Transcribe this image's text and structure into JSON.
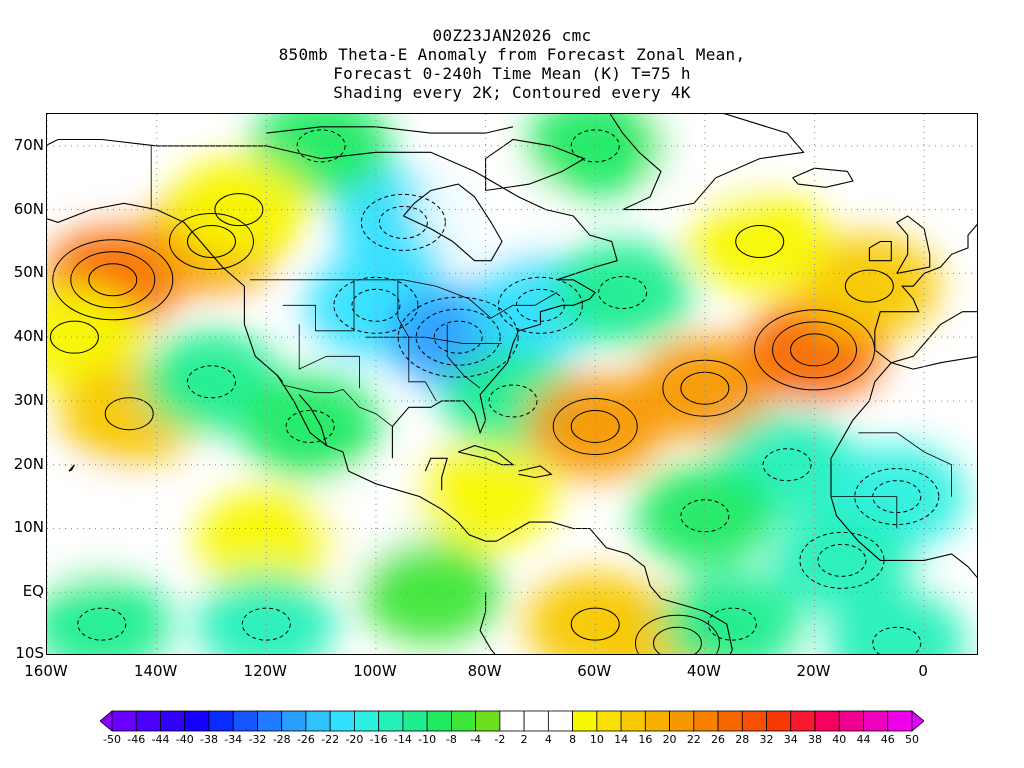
{
  "title": {
    "lines": [
      "00Z23JAN2026 cmc",
      "850mb Theta-E Anomaly from Forecast Zonal Mean,",
      "Forecast 0-240h Time Mean (K) T=75 h",
      "Shading every 2K; Contoured every 4K"
    ]
  },
  "axes": {
    "lat_labels": [
      "70N",
      "60N",
      "50N",
      "40N",
      "30N",
      "20N",
      "10N",
      "EQ",
      "10S"
    ],
    "lat_values": [
      70,
      60,
      50,
      40,
      30,
      20,
      10,
      0,
      -10
    ],
    "lon_labels": [
      "160W",
      "140W",
      "120W",
      "100W",
      "80W",
      "60W",
      "40W",
      "20W",
      "0"
    ],
    "lon_values": [
      -160,
      -140,
      -120,
      -100,
      -80,
      -60,
      -40,
      -20,
      0
    ],
    "lon_range": [
      -160,
      10
    ],
    "lat_range": [
      -10,
      75
    ],
    "grid": "dotted"
  },
  "colorbar": {
    "labels": [
      "-50",
      "-46",
      "-44",
      "-40",
      "-38",
      "-34",
      "-32",
      "-28",
      "-26",
      "-22",
      "-20",
      "-16",
      "-14",
      "-10",
      "-8",
      "-4",
      "-2",
      "2",
      "4",
      "8",
      "10",
      "14",
      "16",
      "20",
      "22",
      "26",
      "28",
      "32",
      "34",
      "38",
      "40",
      "44",
      "46",
      "50"
    ],
    "colors": [
      "#8800ff",
      "#6a00ff",
      "#4b00ff",
      "#2f00ff",
      "#1500ff",
      "#0a2bff",
      "#1656ff",
      "#1f7bff",
      "#2a9eff",
      "#2ec2ff",
      "#30e0ff",
      "#2cf0e0",
      "#24f0b8",
      "#1eee90",
      "#20ea62",
      "#3ee638",
      "#6ce020",
      "#ffffff",
      "#ffffff",
      "#ffffff",
      "#f8f800",
      "#f8e000",
      "#f8c800",
      "#f8b000",
      "#f89800",
      "#f88000",
      "#f86800",
      "#f85000",
      "#f83800",
      "#f81830",
      "#f80060",
      "#f00090",
      "#f000c0",
      "#f000e8",
      "#e000ff"
    ]
  },
  "field_anomalies": [
    {
      "lon": -148,
      "lat": 49,
      "value": 26
    },
    {
      "lon": -130,
      "lat": 55,
      "value": 20
    },
    {
      "lon": -155,
      "lat": 40,
      "value": 10
    },
    {
      "lon": -145,
      "lat": 28,
      "value": 14
    },
    {
      "lon": -155,
      "lat": 10,
      "value": 6
    },
    {
      "lon": -130,
      "lat": 33,
      "value": -12
    },
    {
      "lon": -112,
      "lat": 26,
      "value": -10
    },
    {
      "lon": -100,
      "lat": 45,
      "value": -20
    },
    {
      "lon": -85,
      "lat": 40,
      "value": -26
    },
    {
      "lon": -95,
      "lat": 58,
      "value": -22
    },
    {
      "lon": -80,
      "lat": 60,
      "value": 0
    },
    {
      "lon": -70,
      "lat": 45,
      "value": -20
    },
    {
      "lon": -55,
      "lat": 47,
      "value": -12
    },
    {
      "lon": -75,
      "lat": 30,
      "value": -12
    },
    {
      "lon": -60,
      "lat": 26,
      "value": 20
    },
    {
      "lon": -40,
      "lat": 32,
      "value": 22
    },
    {
      "lon": -20,
      "lat": 38,
      "value": 26
    },
    {
      "lon": -10,
      "lat": 48,
      "value": 14
    },
    {
      "lon": -30,
      "lat": 55,
      "value": 10
    },
    {
      "lon": -40,
      "lat": 70,
      "value": 6
    },
    {
      "lon": -60,
      "lat": 70,
      "value": -10
    },
    {
      "lon": -110,
      "lat": 70,
      "value": -10
    },
    {
      "lon": -125,
      "lat": 60,
      "value": 10
    },
    {
      "lon": -25,
      "lat": 20,
      "value": -14
    },
    {
      "lon": -5,
      "lat": 15,
      "value": -18
    },
    {
      "lon": -15,
      "lat": 5,
      "value": -16
    },
    {
      "lon": -40,
      "lat": 12,
      "value": -10
    },
    {
      "lon": -100,
      "lat": 10,
      "value": 6
    },
    {
      "lon": -120,
      "lat": 8,
      "value": 8
    },
    {
      "lon": -60,
      "lat": -5,
      "value": 14
    },
    {
      "lon": -45,
      "lat": -8,
      "value": 16
    },
    {
      "lon": -120,
      "lat": -5,
      "value": -14
    },
    {
      "lon": -150,
      "lat": -5,
      "value": -12
    },
    {
      "lon": -90,
      "lat": 0,
      "value": -6
    },
    {
      "lon": -35,
      "lat": -5,
      "value": -12
    },
    {
      "lon": -5,
      "lat": -8,
      "value": -14
    },
    {
      "lon": -80,
      "lat": 15,
      "value": 8
    }
  ]
}
